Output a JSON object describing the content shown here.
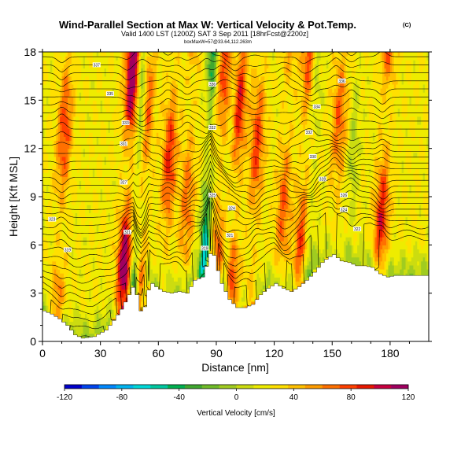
{
  "chart_data": {
    "type": "heatmap",
    "title": "Wind-Parallel Section at Max W: Vertical Velocity & Pot.Temp.",
    "copyright_mark": "(C)",
    "subtitle": "Valid 1400 LST (1200Z) SAT 3 Sep 2011 [18hrFcst@2200z]",
    "subtitle2": "boxMaxW=57@33.64,112.263m",
    "xlabel": "Distance [nm]",
    "ylabel": "Height [Kft MSL]",
    "xlim": [
      0,
      200
    ],
    "ylim": [
      0,
      18
    ],
    "x_ticks": [
      0,
      30,
      60,
      90,
      120,
      150,
      180
    ],
    "y_ticks": [
      0,
      3,
      6,
      9,
      12,
      15,
      18
    ],
    "colorbar": {
      "label": "Vertical Velocity [cm/s]",
      "range": [
        -120,
        120
      ],
      "tick_values": [
        -120,
        -80,
        -40,
        0,
        40,
        80,
        120
      ],
      "tick_labels": [
        "-120",
        "-80",
        "-40",
        "0",
        "40",
        "80",
        "120"
      ],
      "colors": [
        "#0000cc",
        "#0044ee",
        "#0088ff",
        "#00b4f0",
        "#00d8d8",
        "#00c8a0",
        "#00b050",
        "#40a830",
        "#70bc28",
        "#a0cc20",
        "#ccdc10",
        "#eeec00",
        "#ffe000",
        "#ffc000",
        "#ff9c00",
        "#ff7000",
        "#ff4000",
        "#e81800",
        "#c80040",
        "#a00060"
      ]
    },
    "terrain_kft": [
      [
        0,
        1.9
      ],
      [
        4,
        1.7
      ],
      [
        8,
        1.4
      ],
      [
        12,
        1.0
      ],
      [
        16,
        0.4
      ],
      [
        20,
        0.2
      ],
      [
        26,
        0.3
      ],
      [
        32,
        0.7
      ],
      [
        36,
        1.3
      ],
      [
        40,
        2.0
      ],
      [
        44,
        2.9
      ],
      [
        47,
        3.6
      ],
      [
        49,
        2.2
      ],
      [
        51,
        1.6
      ],
      [
        53,
        2.7
      ],
      [
        55,
        3.7
      ],
      [
        58,
        3.4
      ],
      [
        62,
        3.1
      ],
      [
        66,
        3.0
      ],
      [
        70,
        3.1
      ],
      [
        74,
        3.0
      ],
      [
        78,
        3.8
      ],
      [
        82,
        4.0
      ],
      [
        85,
        5.0
      ],
      [
        87,
        5.9
      ],
      [
        89,
        4.8
      ],
      [
        92,
        3.6
      ],
      [
        96,
        2.6
      ],
      [
        100,
        2.1
      ],
      [
        104,
        2.1
      ],
      [
        108,
        2.3
      ],
      [
        112,
        2.9
      ],
      [
        116,
        3.3
      ],
      [
        120,
        3.6
      ],
      [
        124,
        3.3
      ],
      [
        128,
        3.1
      ],
      [
        132,
        3.4
      ],
      [
        136,
        3.8
      ],
      [
        140,
        4.3
      ],
      [
        144,
        4.9
      ],
      [
        147,
        5.2
      ],
      [
        150,
        5.4
      ],
      [
        154,
        5.0
      ],
      [
        158,
        4.9
      ],
      [
        162,
        4.7
      ],
      [
        166,
        4.7
      ],
      [
        170,
        4.6
      ],
      [
        174,
        4.2
      ],
      [
        178,
        4.0
      ],
      [
        182,
        4.1
      ],
      [
        186,
        4.1
      ],
      [
        190,
        4.1
      ],
      [
        196,
        4.1
      ],
      [
        200,
        4.1
      ]
    ],
    "updraft_bands": [
      {
        "center_nm": 10,
        "peak_cms": 60
      },
      {
        "center_nm": 44,
        "peak_cms": 110
      },
      {
        "center_nm": 52,
        "peak_cms": 55
      },
      {
        "center_nm": 65,
        "peak_cms": 65
      },
      {
        "center_nm": 75,
        "peak_cms": 45
      },
      {
        "center_nm": 92,
        "peak_cms": 60
      },
      {
        "center_nm": 100,
        "peak_cms": 70
      },
      {
        "center_nm": 110,
        "peak_cms": 60
      },
      {
        "center_nm": 125,
        "peak_cms": 50
      },
      {
        "center_nm": 135,
        "peak_cms": 60
      },
      {
        "center_nm": 152,
        "peak_cms": 50
      },
      {
        "center_nm": 176,
        "peak_cms": 70
      }
    ],
    "downdraft_bands": [
      {
        "center_nm": 49,
        "peak_cms": -70
      },
      {
        "center_nm": 85,
        "peak_cms": -75
      },
      {
        "center_nm": 96,
        "peak_cms": -25
      },
      {
        "center_nm": 139,
        "peak_cms": -30
      },
      {
        "center_nm": 160,
        "peak_cms": -25
      }
    ],
    "isentrope_spacing_kft": 0.5,
    "isentrope_labels": [
      {
        "x_nm": 28,
        "y_kft": 17.2,
        "text": "337"
      },
      {
        "x_nm": 35,
        "y_kft": 15.4,
        "text": "335"
      },
      {
        "x_nm": 43,
        "y_kft": 13.6,
        "text": "333"
      },
      {
        "x_nm": 42,
        "y_kft": 12.3,
        "text": "331"
      },
      {
        "x_nm": 42,
        "y_kft": 9.9,
        "text": "327"
      },
      {
        "x_nm": 44,
        "y_kft": 6.8,
        "text": "321"
      },
      {
        "x_nm": 5,
        "y_kft": 7.6,
        "text": "323"
      },
      {
        "x_nm": 13,
        "y_kft": 5.7,
        "text": "319"
      },
      {
        "x_nm": 88,
        "y_kft": 16.0,
        "text": "336"
      },
      {
        "x_nm": 88,
        "y_kft": 13.3,
        "text": "332"
      },
      {
        "x_nm": 88,
        "y_kft": 9.1,
        "text": "325"
      },
      {
        "x_nm": 84,
        "y_kft": 5.8,
        "text": "319"
      },
      {
        "x_nm": 98,
        "y_kft": 8.3,
        "text": "324"
      },
      {
        "x_nm": 97,
        "y_kft": 6.6,
        "text": "321"
      },
      {
        "x_nm": 155,
        "y_kft": 16.2,
        "text": "336"
      },
      {
        "x_nm": 142,
        "y_kft": 14.6,
        "text": "334"
      },
      {
        "x_nm": 138,
        "y_kft": 13.0,
        "text": "332"
      },
      {
        "x_nm": 140,
        "y_kft": 11.5,
        "text": "330"
      },
      {
        "x_nm": 145,
        "y_kft": 10.1,
        "text": "328"
      },
      {
        "x_nm": 156,
        "y_kft": 9.1,
        "text": "326"
      },
      {
        "x_nm": 156,
        "y_kft": 8.2,
        "text": "324"
      },
      {
        "x_nm": 163,
        "y_kft": 7.0,
        "text": "322"
      }
    ]
  }
}
